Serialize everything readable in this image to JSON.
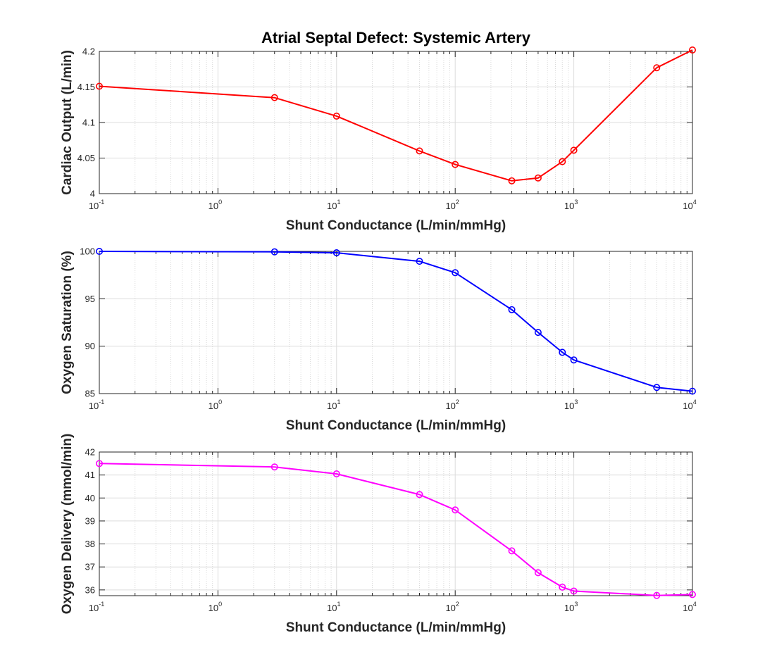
{
  "figure_title": "Atrial Septal Defect: Systemic Artery",
  "chart_data": [
    {
      "type": "line",
      "xscale": "log",
      "xlabel": "Shunt Conductance (L/min/mmHg)",
      "ylabel": "Cardiac Output (L/min)",
      "xlim": [
        0.1,
        10000
      ],
      "ylim": [
        4,
        4.2
      ],
      "yticks": [
        4,
        4.05,
        4.1,
        4.15,
        4.2
      ],
      "ytick_labels": [
        "4",
        "4.05",
        "4.1",
        "4.15",
        "4.2"
      ],
      "grid": true,
      "color": "#ff0000",
      "marker": "circle",
      "series": [
        {
          "x": [
            0.1,
            3,
            10,
            50,
            100,
            300,
            500,
            800,
            1000,
            5000,
            10000
          ],
          "values": [
            4.151,
            4.135,
            4.109,
            4.06,
            4.041,
            4.018,
            4.022,
            4.045,
            4.061,
            4.177,
            4.202
          ]
        }
      ]
    },
    {
      "type": "line",
      "xscale": "log",
      "xlabel": "Shunt Conductance (L/min/mmHg)",
      "ylabel": "Oxygen Saturation (%)",
      "xlim": [
        0.1,
        10000
      ],
      "ylim": [
        85,
        100
      ],
      "yticks": [
        85,
        90,
        95,
        100
      ],
      "ytick_labels": [
        "85",
        "90",
        "95",
        "100"
      ],
      "grid": true,
      "color": "#0000ff",
      "marker": "circle",
      "series": [
        {
          "x": [
            0.1,
            3,
            10,
            50,
            100,
            300,
            500,
            800,
            1000,
            5000,
            10000
          ],
          "values": [
            100.0,
            99.95,
            99.85,
            98.95,
            97.75,
            93.85,
            91.45,
            89.35,
            88.55,
            85.65,
            85.25
          ]
        }
      ]
    },
    {
      "type": "line",
      "xscale": "log",
      "xlabel": "Shunt Conductance (L/min/mmHg)",
      "ylabel": "Oxygen Delivery (mmol/min)",
      "xlim": [
        0.1,
        10000
      ],
      "ylim": [
        35.75,
        42
      ],
      "yticks": [
        36,
        37,
        38,
        39,
        40,
        41,
        42
      ],
      "ytick_labels": [
        "36",
        "37",
        "38",
        "39",
        "40",
        "41",
        "42"
      ],
      "grid": true,
      "color": "#ff00ff",
      "marker": "circle",
      "series": [
        {
          "x": [
            0.1,
            3,
            10,
            50,
            100,
            300,
            500,
            800,
            1000,
            5000,
            10000
          ],
          "values": [
            41.5,
            41.35,
            41.05,
            40.15,
            39.48,
            37.7,
            36.75,
            36.12,
            35.95,
            35.76,
            35.8
          ]
        }
      ]
    }
  ],
  "xtick_labels": [
    {
      "base": "10",
      "exp": "-1"
    },
    {
      "base": "10",
      "exp": "0"
    },
    {
      "base": "10",
      "exp": "1"
    },
    {
      "base": "10",
      "exp": "2"
    },
    {
      "base": "10",
      "exp": "3"
    },
    {
      "base": "10",
      "exp": "4"
    }
  ]
}
